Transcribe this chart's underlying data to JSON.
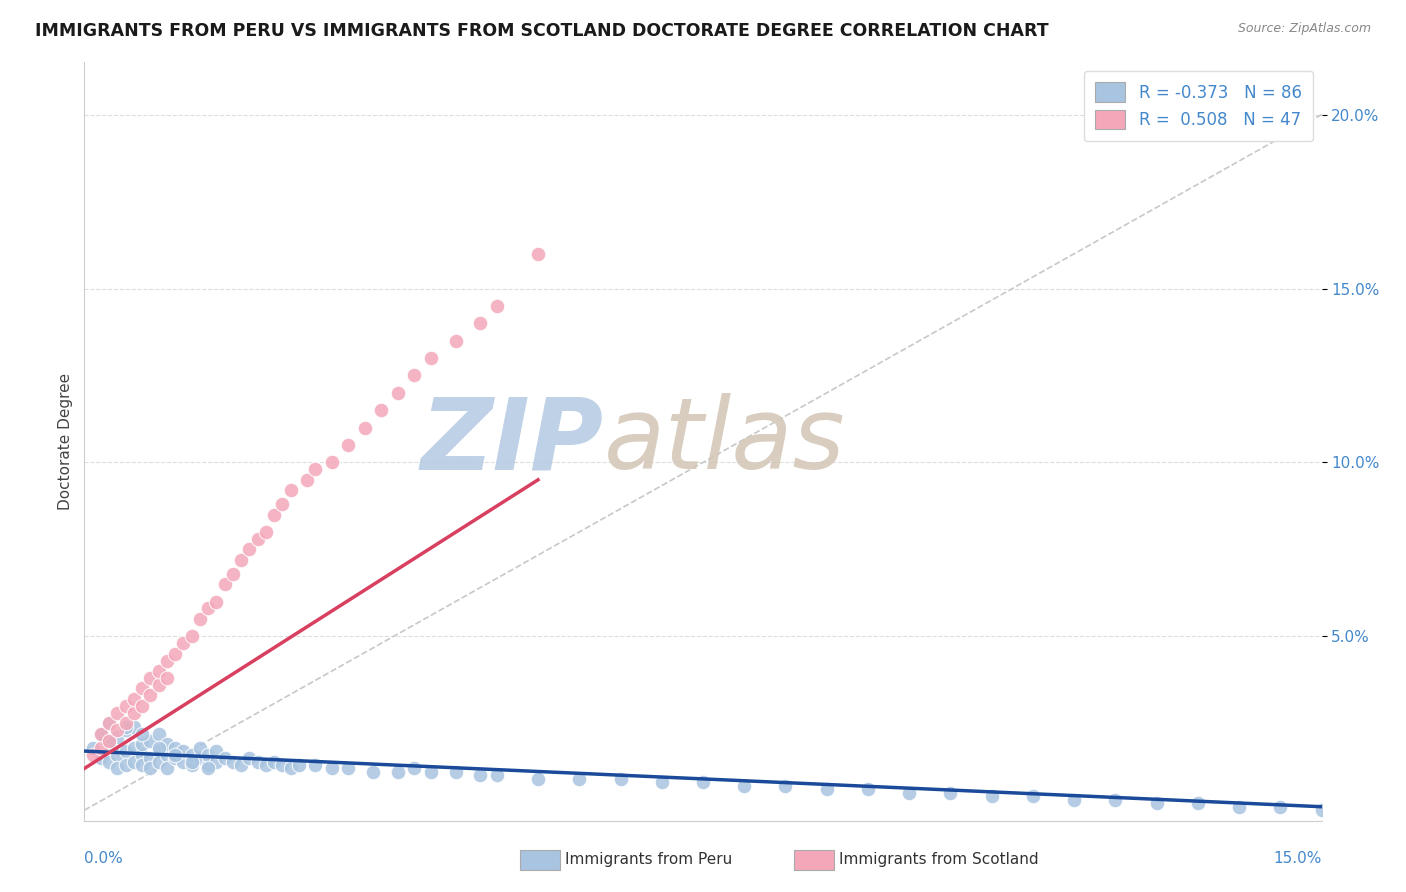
{
  "title": "IMMIGRANTS FROM PERU VS IMMIGRANTS FROM SCOTLAND DOCTORATE DEGREE CORRELATION CHART",
  "source_text": "Source: ZipAtlas.com",
  "ylabel": "Doctorate Degree",
  "xlim": [
    0.0,
    0.15
  ],
  "ylim": [
    -0.003,
    0.215
  ],
  "peru_R": -0.373,
  "peru_N": 86,
  "scotland_R": 0.508,
  "scotland_N": 47,
  "peru_color": "#a8c4e0",
  "scotland_color": "#f4a7b9",
  "peru_line_color": "#1a4a99",
  "scotland_line_color": "#d94060",
  "ref_line_color": "#c8c8c8",
  "watermark_color": "#d0dff0",
  "background_color": "#ffffff",
  "title_fontsize": 12.5,
  "legend_fontsize": 12,
  "tick_label_color": "#4488cc",
  "grid_color": "#dddddd",
  "peru_scatter_x": [
    0.001,
    0.002,
    0.002,
    0.003,
    0.003,
    0.003,
    0.004,
    0.004,
    0.004,
    0.005,
    0.005,
    0.005,
    0.006,
    0.006,
    0.006,
    0.007,
    0.007,
    0.007,
    0.008,
    0.008,
    0.008,
    0.009,
    0.009,
    0.009,
    0.01,
    0.01,
    0.01,
    0.011,
    0.011,
    0.012,
    0.012,
    0.013,
    0.013,
    0.014,
    0.014,
    0.015,
    0.015,
    0.016,
    0.016,
    0.017,
    0.018,
    0.019,
    0.02,
    0.021,
    0.022,
    0.023,
    0.024,
    0.025,
    0.026,
    0.028,
    0.03,
    0.032,
    0.035,
    0.038,
    0.04,
    0.042,
    0.045,
    0.048,
    0.05,
    0.055,
    0.06,
    0.065,
    0.07,
    0.075,
    0.08,
    0.085,
    0.09,
    0.095,
    0.1,
    0.105,
    0.11,
    0.115,
    0.12,
    0.125,
    0.13,
    0.135,
    0.14,
    0.145,
    0.15,
    0.003,
    0.005,
    0.007,
    0.009,
    0.011,
    0.013,
    0.015
  ],
  "peru_scatter_y": [
    0.018,
    0.022,
    0.015,
    0.019,
    0.014,
    0.025,
    0.016,
    0.021,
    0.012,
    0.017,
    0.023,
    0.013,
    0.018,
    0.014,
    0.024,
    0.016,
    0.019,
    0.013,
    0.015,
    0.02,
    0.012,
    0.017,
    0.014,
    0.022,
    0.016,
    0.012,
    0.019,
    0.015,
    0.018,
    0.014,
    0.017,
    0.013,
    0.016,
    0.015,
    0.018,
    0.013,
    0.016,
    0.014,
    0.017,
    0.015,
    0.014,
    0.013,
    0.015,
    0.014,
    0.013,
    0.014,
    0.013,
    0.012,
    0.013,
    0.013,
    0.012,
    0.012,
    0.011,
    0.011,
    0.012,
    0.011,
    0.011,
    0.01,
    0.01,
    0.009,
    0.009,
    0.009,
    0.008,
    0.008,
    0.007,
    0.007,
    0.006,
    0.006,
    0.005,
    0.005,
    0.004,
    0.004,
    0.003,
    0.003,
    0.002,
    0.002,
    0.001,
    0.001,
    0.0,
    0.02,
    0.024,
    0.022,
    0.018,
    0.016,
    0.014,
    0.012
  ],
  "scotland_scatter_x": [
    0.001,
    0.002,
    0.002,
    0.003,
    0.003,
    0.004,
    0.004,
    0.005,
    0.005,
    0.006,
    0.006,
    0.007,
    0.007,
    0.008,
    0.008,
    0.009,
    0.009,
    0.01,
    0.01,
    0.011,
    0.012,
    0.013,
    0.014,
    0.015,
    0.016,
    0.017,
    0.018,
    0.019,
    0.02,
    0.021,
    0.022,
    0.023,
    0.024,
    0.025,
    0.027,
    0.028,
    0.03,
    0.032,
    0.034,
    0.036,
    0.038,
    0.04,
    0.042,
    0.045,
    0.048,
    0.05,
    0.055
  ],
  "scotland_scatter_y": [
    0.016,
    0.018,
    0.022,
    0.02,
    0.025,
    0.023,
    0.028,
    0.025,
    0.03,
    0.028,
    0.032,
    0.03,
    0.035,
    0.033,
    0.038,
    0.036,
    0.04,
    0.038,
    0.043,
    0.045,
    0.048,
    0.05,
    0.055,
    0.058,
    0.06,
    0.065,
    0.068,
    0.072,
    0.075,
    0.078,
    0.08,
    0.085,
    0.088,
    0.092,
    0.095,
    0.098,
    0.1,
    0.105,
    0.11,
    0.115,
    0.12,
    0.125,
    0.13,
    0.135,
    0.14,
    0.145,
    0.16
  ],
  "peru_line_x": [
    0.0,
    0.15
  ],
  "peru_line_y_start": 0.017,
  "peru_line_y_end": 0.001,
  "scotland_line_x_start": 0.0,
  "scotland_line_x_end": 0.055,
  "scotland_line_y_start": 0.012,
  "scotland_line_y_end": 0.095,
  "ref_line_x": [
    0.0,
    0.15
  ],
  "ref_line_y": [
    0.0,
    0.2
  ]
}
